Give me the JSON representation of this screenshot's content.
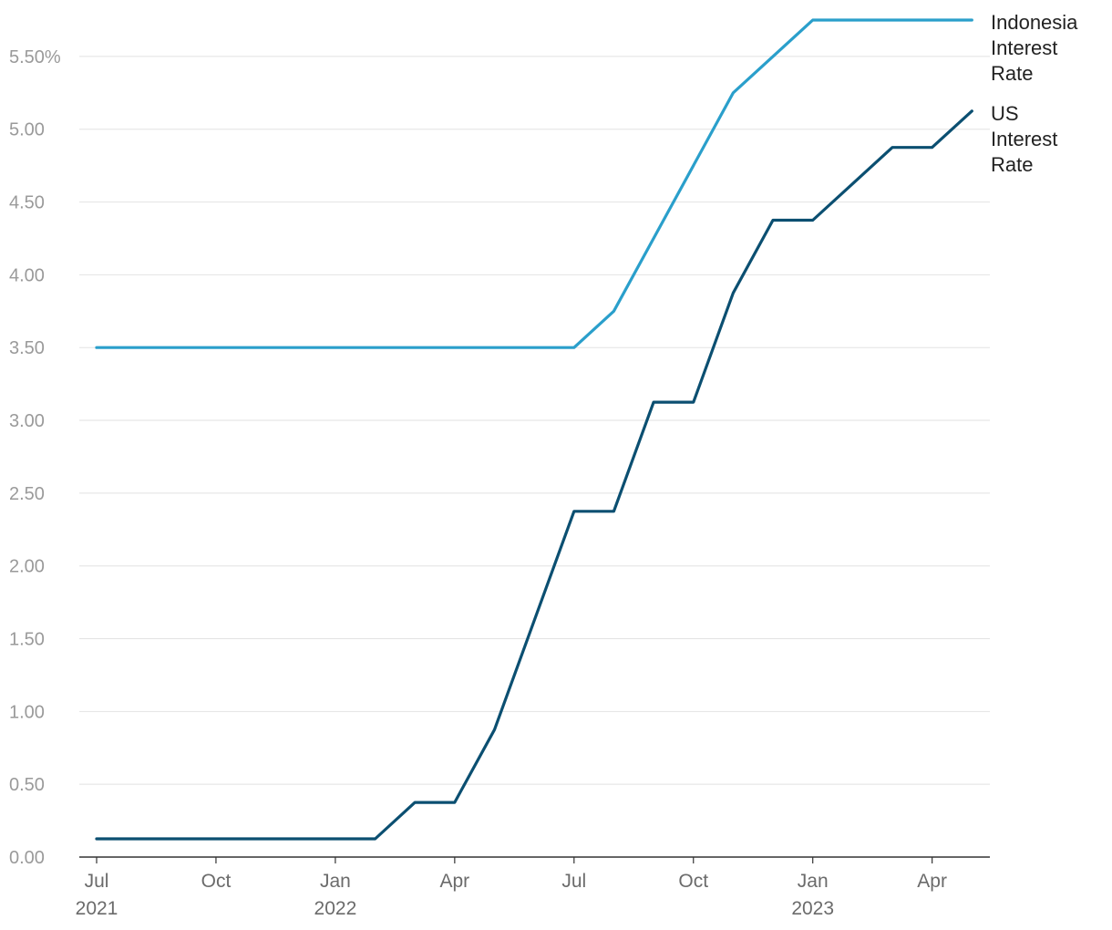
{
  "chart_data": {
    "type": "line",
    "title": "",
    "xlabel": "",
    "ylabel": "",
    "ylim": [
      0,
      5.75
    ],
    "y_ticks": [
      {
        "value": 0.0,
        "label": "0.00"
      },
      {
        "value": 0.5,
        "label": "0.50"
      },
      {
        "value": 1.0,
        "label": "1.00"
      },
      {
        "value": 1.5,
        "label": "1.50"
      },
      {
        "value": 2.0,
        "label": "2.00"
      },
      {
        "value": 2.5,
        "label": "2.50"
      },
      {
        "value": 3.0,
        "label": "3.00"
      },
      {
        "value": 3.5,
        "label": "3.50"
      },
      {
        "value": 4.0,
        "label": "4.00"
      },
      {
        "value": 4.5,
        "label": "4.50"
      },
      {
        "value": 5.0,
        "label": "5.00"
      },
      {
        "value": 5.5,
        "label": "5.50%"
      }
    ],
    "x_ticks": [
      {
        "date": "2021-07",
        "label": "Jul",
        "year": "2021"
      },
      {
        "date": "2021-10",
        "label": "Oct",
        "year": ""
      },
      {
        "date": "2022-01",
        "label": "Jan",
        "year": "2022"
      },
      {
        "date": "2022-04",
        "label": "Apr",
        "year": ""
      },
      {
        "date": "2022-07",
        "label": "Jul",
        "year": ""
      },
      {
        "date": "2022-10",
        "label": "Oct",
        "year": ""
      },
      {
        "date": "2023-01",
        "label": "Jan",
        "year": "2023"
      },
      {
        "date": "2023-04",
        "label": "Apr",
        "year": ""
      }
    ],
    "grid": true,
    "legend": "direct labels at right end of lines",
    "series": [
      {
        "name": "Indonesia Interest Rate",
        "label_lines": [
          "Indonesia",
          "Interest",
          "Rate"
        ],
        "color": "#2a9fcb",
        "points": [
          {
            "x": "2021-07",
            "y": 3.5
          },
          {
            "x": "2022-07",
            "y": 3.5
          },
          {
            "x": "2022-08",
            "y": 3.75
          },
          {
            "x": "2022-11",
            "y": 5.25
          },
          {
            "x": "2023-01",
            "y": 5.75
          },
          {
            "x": "2023-05",
            "y": 5.75
          }
        ]
      },
      {
        "name": "US Interest Rate",
        "label_lines": [
          "US",
          "Interest",
          "Rate"
        ],
        "color": "#0b4f71",
        "points": [
          {
            "x": "2021-07",
            "y": 0.125
          },
          {
            "x": "2022-02",
            "y": 0.125
          },
          {
            "x": "2022-03",
            "y": 0.375
          },
          {
            "x": "2022-04",
            "y": 0.375
          },
          {
            "x": "2022-05",
            "y": 0.875
          },
          {
            "x": "2022-07",
            "y": 2.375
          },
          {
            "x": "2022-08",
            "y": 2.375
          },
          {
            "x": "2022-09",
            "y": 3.125
          },
          {
            "x": "2022-10",
            "y": 3.125
          },
          {
            "x": "2022-11",
            "y": 3.875
          },
          {
            "x": "2022-12",
            "y": 4.375
          },
          {
            "x": "2023-01",
            "y": 4.375
          },
          {
            "x": "2023-02",
            "y": 4.625
          },
          {
            "x": "2023-03",
            "y": 4.875
          },
          {
            "x": "2023-04",
            "y": 4.875
          },
          {
            "x": "2023-05",
            "y": 5.125
          }
        ]
      }
    ]
  }
}
